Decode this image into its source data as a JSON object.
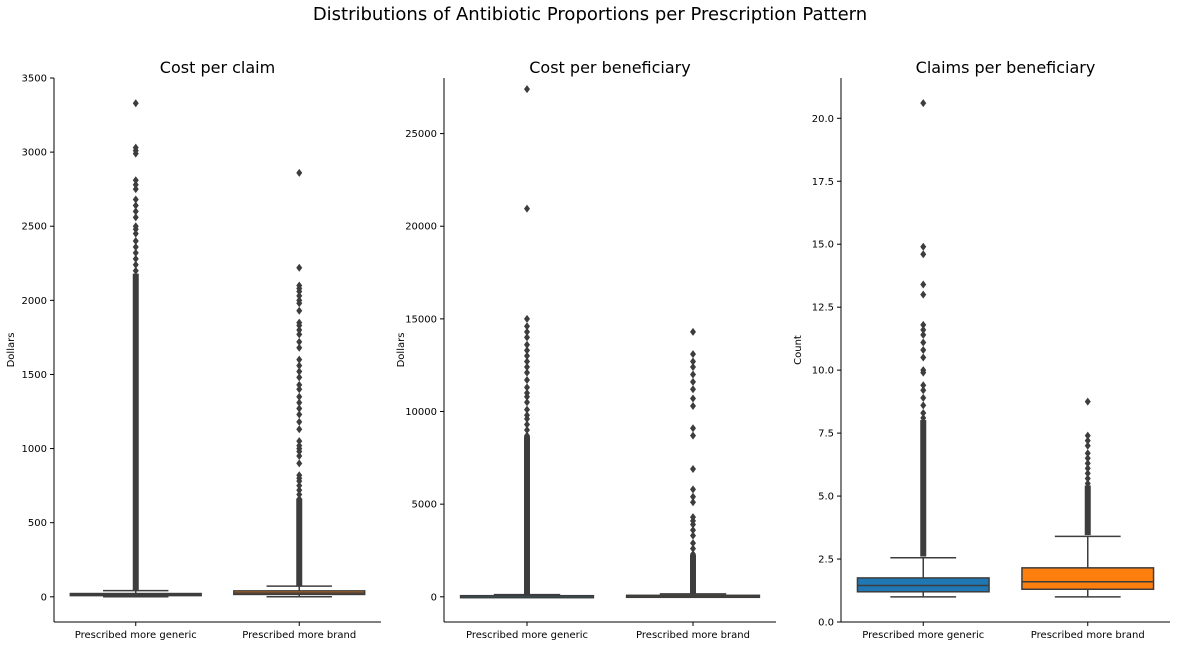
{
  "suptitle": "Distributions of Antibiotic Proportions per Prescription Pattern",
  "colors": {
    "generic": "#1f77b4",
    "brand": "#ff7f0e",
    "line": "#3d3d3d",
    "axis": "#000000"
  },
  "chart_data": [
    {
      "type": "box",
      "title": "Cost per claim",
      "xlabel": "",
      "ylabel": "Dollars",
      "ylim": [
        -170,
        3500
      ],
      "yticks": [
        0,
        500,
        1000,
        1500,
        2000,
        2500,
        3000,
        3500
      ],
      "categories": [
        "Prescribed more generic",
        "Prescribed more brand"
      ],
      "series": [
        {
          "category": "Prescribed more generic",
          "color": "#1f77b4",
          "whislo": 0,
          "q1": 8,
          "median": 14,
          "q3": 22,
          "whishi": 42,
          "outliers_dense": [
            45,
            2160
          ],
          "outliers": [
            2200,
            2240,
            2280,
            2320,
            2360,
            2400,
            2450,
            2480,
            2500,
            2560,
            2600,
            2640,
            2680,
            2750,
            2780,
            2810,
            2990,
            3010,
            3030,
            3330
          ]
        },
        {
          "category": "Prescribed more brand",
          "color": "#ff7f0e",
          "whislo": 0,
          "q1": 16,
          "median": 26,
          "q3": 40,
          "whishi": 72,
          "outliers_dense": [
            75,
            640
          ],
          "outliers": [
            660,
            690,
            720,
            750,
            780,
            800,
            820,
            900,
            950,
            980,
            1000,
            1020,
            1050,
            1130,
            1180,
            1230,
            1270,
            1310,
            1350,
            1400,
            1430,
            1480,
            1520,
            1560,
            1600,
            1680,
            1720,
            1770,
            1800,
            1830,
            1850,
            1930,
            1980,
            2000,
            2030,
            2060,
            2080,
            2100,
            2220,
            2860
          ]
        }
      ]
    },
    {
      "type": "box",
      "title": "Cost per beneficiary",
      "xlabel": "",
      "ylabel": "Dollars",
      "ylim": [
        -1360,
        28000
      ],
      "yticks": [
        0,
        5000,
        10000,
        15000,
        20000,
        25000
      ],
      "categories": [
        "Prescribed more generic",
        "Prescribed more brand"
      ],
      "series": [
        {
          "category": "Prescribed more generic",
          "color": "#1f77b4",
          "whislo": 0,
          "q1": 20,
          "median": 40,
          "q3": 60,
          "whishi": 120,
          "outliers_dense": [
            130,
            8500
          ],
          "outliers": [
            8700,
            9000,
            9300,
            9600,
            9800,
            10100,
            10500,
            10800,
            11000,
            11300,
            11700,
            12100,
            12400,
            12700,
            13000,
            13300,
            13600,
            14000,
            14300,
            14600,
            15000,
            20950,
            27400
          ]
        },
        {
          "category": "Prescribed more brand",
          "color": "#ff7f0e",
          "whislo": 0,
          "q1": 25,
          "median": 50,
          "q3": 80,
          "whishi": 160,
          "outliers_dense": [
            170,
            2100
          ],
          "outliers": [
            2300,
            2600,
            2900,
            3300,
            3600,
            3900,
            4100,
            4300,
            5100,
            5400,
            5800,
            6900,
            8700,
            9100,
            10300,
            10700,
            11200,
            11600,
            12000,
            12400,
            12700,
            13100,
            14300
          ]
        }
      ]
    },
    {
      "type": "box",
      "title": "Claims per beneficiary",
      "xlabel": "",
      "ylabel": "Count",
      "ylim": [
        0,
        21.6
      ],
      "yticks": [
        0.0,
        2.5,
        5.0,
        7.5,
        10.0,
        12.5,
        15.0,
        17.5,
        20.0
      ],
      "ytick_labels": [
        "0.0",
        "2.5",
        "5.0",
        "7.5",
        "10.0",
        "12.5",
        "15.0",
        "17.5",
        "20.0"
      ],
      "categories": [
        "Prescribed more generic",
        "Prescribed more brand"
      ],
      "series": [
        {
          "category": "Prescribed more generic",
          "color": "#1f77b4",
          "whislo": 1.0,
          "q1": 1.2,
          "median": 1.45,
          "q3": 1.75,
          "whishi": 2.55,
          "outliers_dense": [
            2.6,
            7.9
          ],
          "outliers": [
            8.1,
            8.3,
            8.6,
            8.9,
            9.2,
            9.4,
            9.9,
            10.0,
            10.5,
            10.8,
            11.1,
            11.4,
            11.6,
            11.8,
            13.0,
            13.4,
            14.6,
            14.9,
            20.6
          ]
        },
        {
          "category": "Prescribed more brand",
          "color": "#ff7f0e",
          "whislo": 1.0,
          "q1": 1.3,
          "median": 1.6,
          "q3": 2.15,
          "whishi": 3.4,
          "outliers_dense": [
            3.45,
            5.3
          ],
          "outliers": [
            5.5,
            5.7,
            5.9,
            6.1,
            6.3,
            6.5,
            6.7,
            7.0,
            7.2,
            7.4,
            8.75
          ]
        }
      ]
    }
  ]
}
